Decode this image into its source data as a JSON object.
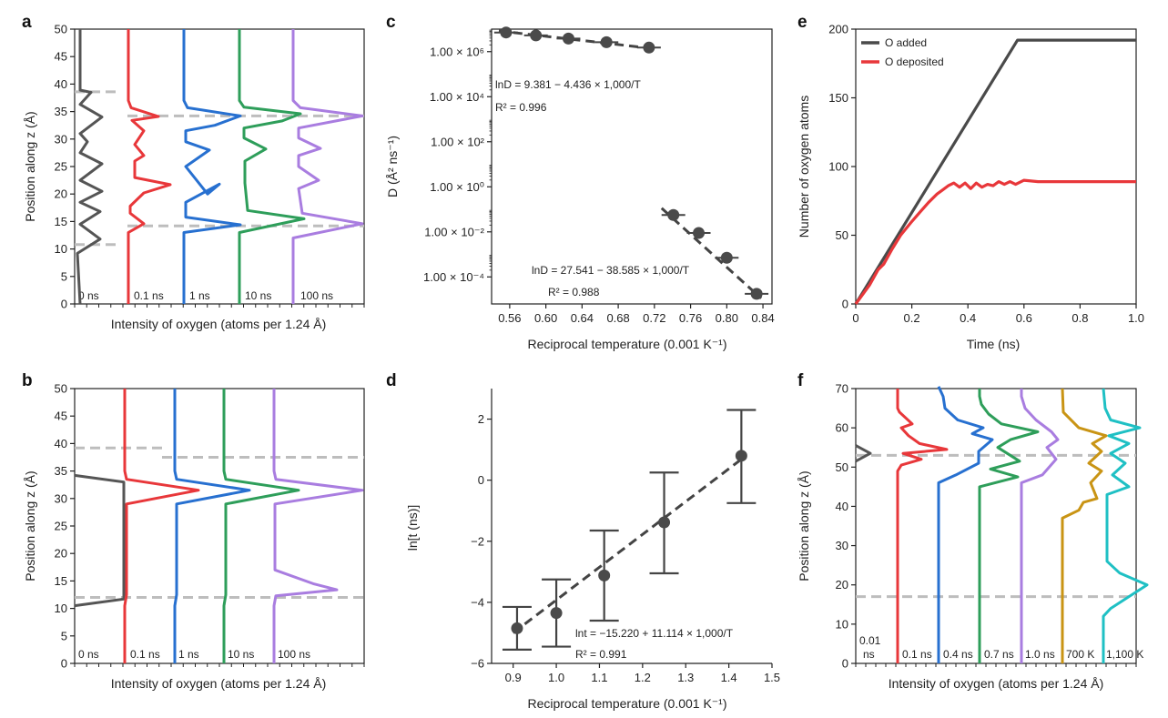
{
  "chart_data": [
    {
      "id": "a",
      "type": "line",
      "panel_label": "a",
      "xlabel": "Intensity of oxygen (atoms per 1.24 Å)",
      "ylabel": "Position along z (Å)",
      "ylim": [
        0,
        50
      ],
      "yticks": [
        0,
        5,
        10,
        15,
        20,
        25,
        30,
        35,
        40,
        45,
        50
      ],
      "series_labels": [
        "0 ns",
        "0.1 ns",
        "1 ns",
        "10 ns",
        "100 ns"
      ],
      "colors": [
        "#555555",
        "#e8373a",
        "#2770d0",
        "#2e9e5a",
        "#a97de0"
      ],
      "reference_lines_y": [
        38.6,
        34.2,
        14.2,
        10.8
      ]
    },
    {
      "id": "b",
      "type": "line",
      "panel_label": "b",
      "xlabel": "Intensity of oxygen (atoms per 1.24 Å)",
      "ylabel": "Position along z (Å)",
      "ylim": [
        0,
        50
      ],
      "yticks": [
        0,
        5,
        10,
        15,
        20,
        25,
        30,
        35,
        40,
        45,
        50
      ],
      "series_labels": [
        "0 ns",
        "0.1 ns",
        "1 ns",
        "10 ns",
        "100 ns"
      ],
      "colors": [
        "#555555",
        "#e8373a",
        "#2770d0",
        "#2e9e5a",
        "#a97de0"
      ],
      "reference_lines_y": [
        39.2,
        37.5,
        12.0
      ]
    },
    {
      "id": "c",
      "type": "scatter",
      "panel_label": "c",
      "xlabel": "Reciprocal temperature (0.001 K⁻¹)",
      "ylabel": "D (Å² ns⁻¹)",
      "xlim": [
        0.54,
        0.85
      ],
      "xticks": [
        0.56,
        0.6,
        0.64,
        0.68,
        0.72,
        0.76,
        0.8,
        0.84
      ],
      "xtick_labels": [
        "0.56",
        "0.60",
        "0.64",
        "0.68",
        "0.72",
        "0.76",
        "0.80",
        "0.84"
      ],
      "ylim_log10": [
        -5.2,
        7.0
      ],
      "ytick_exps": [
        6,
        4,
        2,
        0,
        -2,
        -4
      ],
      "ytick_labels": [
        "1.00 × 10⁶",
        "1.00 × 10⁴",
        "1.00 × 10²",
        "1.00 × 10⁰",
        "1.00 × 10⁻²",
        "1.00 × 10⁻⁴"
      ],
      "points_high": [
        {
          "x": 0.556,
          "logy": 6.85
        },
        {
          "x": 0.589,
          "logy": 6.72
        },
        {
          "x": 0.625,
          "logy": 6.58
        },
        {
          "x": 0.667,
          "logy": 6.42
        },
        {
          "x": 0.714,
          "logy": 6.18
        }
      ],
      "points_low": [
        {
          "x": 0.741,
          "logy": -1.25
        },
        {
          "x": 0.769,
          "logy": -2.05
        },
        {
          "x": 0.8,
          "logy": -3.15
        },
        {
          "x": 0.833,
          "logy": -4.75
        }
      ],
      "eq1": "lnD = 9.381 − 4.436 × 1,000/T",
      "r2_1": "R² = 0.996",
      "eq2": "lnD = 27.541 − 38.585 × 1,000/T",
      "r2_2": "R² = 0.988"
    },
    {
      "id": "d",
      "type": "scatter",
      "panel_label": "d",
      "xlabel": "Reciprocal temperature (0.001 K⁻¹)",
      "ylabel": "ln[t (ns)]",
      "xlim": [
        0.85,
        1.5
      ],
      "xticks": [
        0.9,
        1.0,
        1.1,
        1.2,
        1.3,
        1.4,
        1.5
      ],
      "xtick_labels": [
        "0.9",
        "1.0",
        "1.1",
        "1.2",
        "1.3",
        "1.4",
        "1.5"
      ],
      "ylim": [
        -6,
        3
      ],
      "yticks": [
        2,
        0,
        -2,
        -4,
        -6
      ],
      "ytick_labels": [
        "2",
        "0",
        "−2",
        "−4",
        "−6"
      ],
      "points": [
        {
          "x": 0.909,
          "y": -4.85,
          "lo": -5.55,
          "hi": -4.15
        },
        {
          "x": 1.0,
          "y": -4.35,
          "lo": -5.45,
          "hi": -3.25
        },
        {
          "x": 1.111,
          "y": -3.12,
          "lo": -4.6,
          "hi": -1.65
        },
        {
          "x": 1.25,
          "y": -1.38,
          "lo": -3.05,
          "hi": 0.25
        },
        {
          "x": 1.429,
          "y": 0.8,
          "lo": -0.75,
          "hi": 2.3
        }
      ],
      "eq": "lnt = −15.220 + 11.114 × 1,000/T",
      "r2": "R² = 0.991"
    },
    {
      "id": "e",
      "type": "line",
      "panel_label": "e",
      "xlabel": "Time (ns)",
      "ylabel": "Number of oxygen atoms",
      "xlim": [
        0,
        1.0
      ],
      "xticks": [
        0,
        0.2,
        0.4,
        0.6,
        0.8,
        1.0
      ],
      "xtick_labels": [
        "0",
        "0.2",
        "0.4",
        "0.6",
        "0.8",
        "1.0"
      ],
      "ylim": [
        0,
        200
      ],
      "yticks": [
        0,
        50,
        100,
        150,
        200
      ],
      "legend": [
        "O added",
        "O deposited"
      ],
      "colors": [
        "#4a4a4a",
        "#e8373a"
      ],
      "series": [
        {
          "name": "O added",
          "x": [
            0,
            0.577,
            1.0
          ],
          "y": [
            0,
            192,
            192
          ]
        },
        {
          "name": "O deposited",
          "x": [
            0,
            0.05,
            0.08,
            0.1,
            0.13,
            0.16,
            0.2,
            0.23,
            0.26,
            0.29,
            0.31,
            0.33,
            0.35,
            0.37,
            0.39,
            0.41,
            0.43,
            0.45,
            0.47,
            0.49,
            0.51,
            0.53,
            0.55,
            0.57,
            0.6,
            0.65,
            0.75,
            0.85,
            1.0
          ],
          "y": [
            0,
            14,
            25,
            29,
            40,
            50,
            60,
            67,
            74,
            80,
            83,
            86,
            88,
            85,
            88,
            84,
            88,
            85,
            87,
            86,
            89,
            87,
            89,
            87,
            90,
            89,
            89,
            89,
            89
          ]
        }
      ]
    },
    {
      "id": "f",
      "type": "line",
      "panel_label": "f",
      "xlabel": "Intensity of oxygen (atoms per 1.24 Å)",
      "ylabel": "Position along z (Å)",
      "ylim": [
        0,
        70
      ],
      "yticks": [
        0,
        10,
        20,
        30,
        40,
        50,
        60,
        70
      ],
      "series_labels": [
        "0.01\nns",
        "0.1 ns",
        "0.4 ns",
        "0.7 ns",
        "1.0 ns",
        "700 K",
        "1,100 K"
      ],
      "label_001_a": "0.01",
      "label_001_b": "ns",
      "colors": [
        "#555555",
        "#e8373a",
        "#2770d0",
        "#2e9e5a",
        "#a97de0",
        "#c99414",
        "#1fc0c4"
      ],
      "reference_lines_y": [
        53,
        17
      ]
    }
  ]
}
